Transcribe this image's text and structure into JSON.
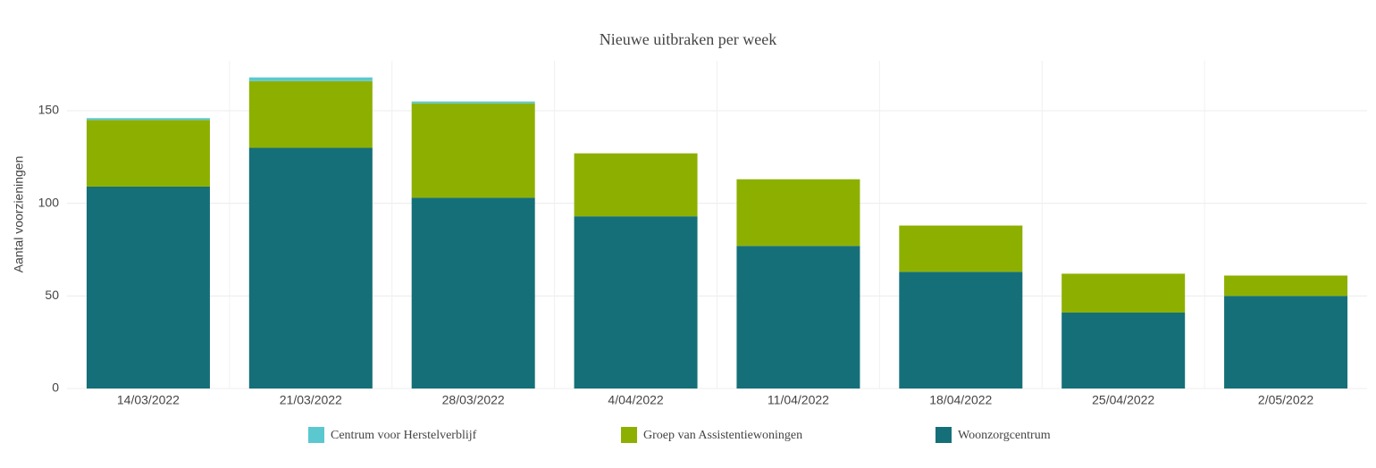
{
  "chart_data": {
    "type": "stacked_bar",
    "title": "Nieuwe uitbraken per week",
    "y_label": "Aantal voorzieningen",
    "categories": [
      "14/03/2022",
      "21/03/2022",
      "28/03/2022",
      "4/04/2022",
      "11/04/2022",
      "18/04/2022",
      "25/04/2022",
      "2/05/2022"
    ],
    "series": [
      {
        "name": "Woonzorgcentrum",
        "color": "#156f78",
        "values": [
          109,
          130,
          103,
          93,
          77,
          63,
          41,
          50
        ]
      },
      {
        "name": "Groep van Assistentiewoningen",
        "color": "#8db000",
        "values": [
          36,
          36,
          51,
          34,
          36,
          25,
          21,
          11
        ]
      },
      {
        "name": "Centrum voor Herstelverblijf",
        "color": "#5bc8d0",
        "values": [
          1,
          2,
          1,
          0,
          0,
          0,
          0,
          0
        ]
      }
    ],
    "legend_order": [
      2,
      1,
      0
    ],
    "ylim": [
      0,
      177
    ],
    "yticks": [
      0,
      50,
      100,
      150
    ],
    "grid": true
  }
}
